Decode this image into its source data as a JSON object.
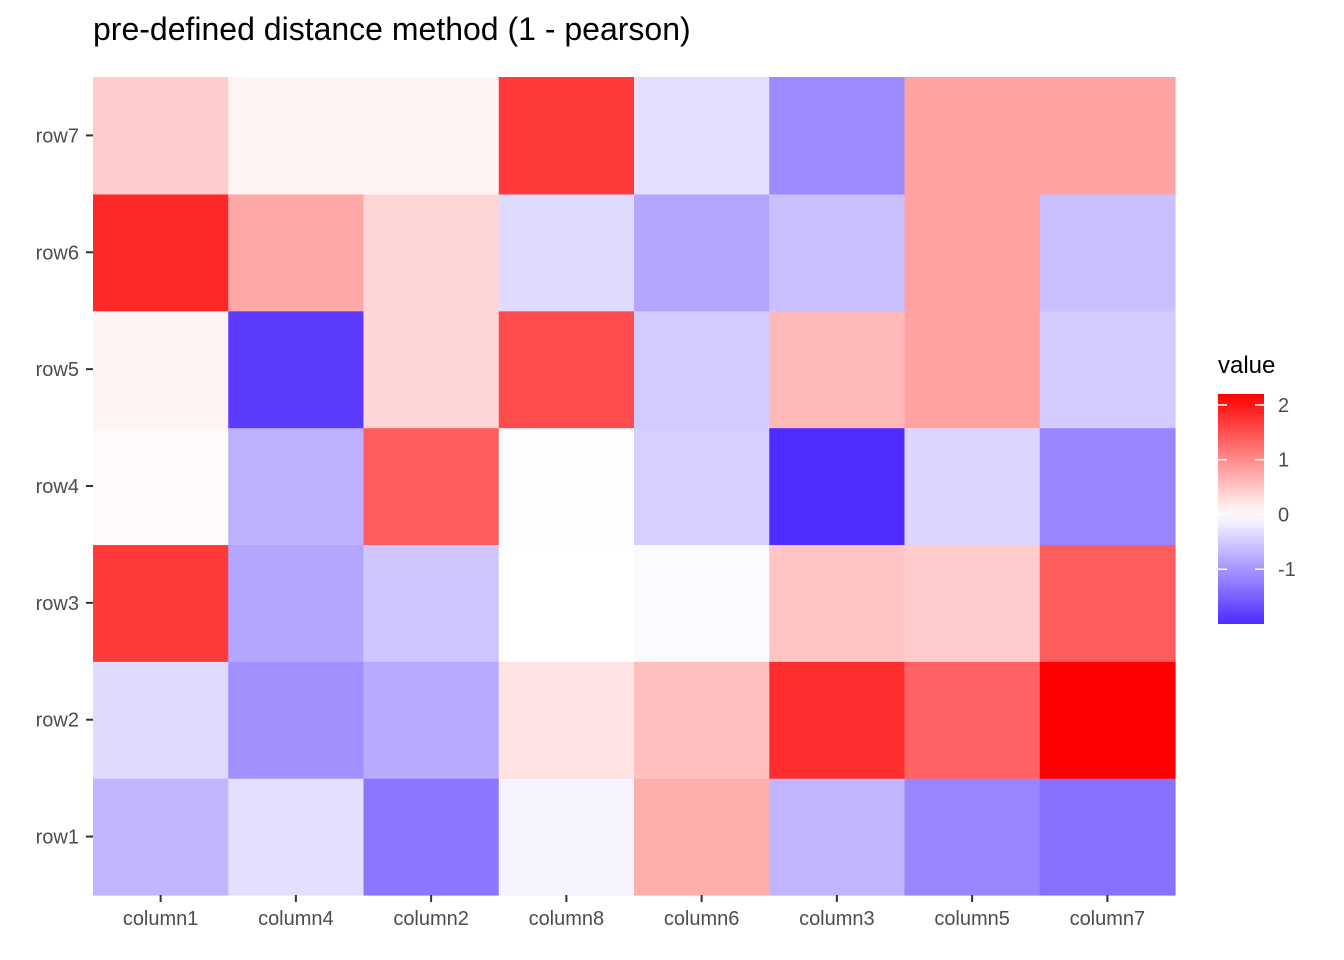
{
  "chart_data": {
    "type": "heatmap",
    "title": "pre-defined distance method (1 - pearson)",
    "xlabel": "",
    "ylabel": "",
    "columns": [
      "column1",
      "column4",
      "column2",
      "column8",
      "column6",
      "column3",
      "column5",
      "column7"
    ],
    "rows": [
      "row1",
      "row2",
      "row3",
      "row4",
      "row5",
      "row6",
      "row7"
    ],
    "values": [
      [
        -0.7,
        -0.3,
        -1.3,
        -0.1,
        0.7,
        -0.7,
        -1.15,
        -1.35
      ],
      [
        -0.35,
        -1.05,
        -0.8,
        0.25,
        0.55,
        1.8,
        1.35,
        2.2
      ],
      [
        1.7,
        -0.85,
        -0.55,
        0.0,
        -0.05,
        0.5,
        0.45,
        1.4
      ],
      [
        0.05,
        -0.75,
        1.4,
        -0.02,
        -0.45,
        -2.0,
        -0.4,
        -1.15
      ],
      [
        0.1,
        -1.85,
        0.35,
        1.55,
        -0.5,
        0.6,
        0.8,
        -0.5
      ],
      [
        1.85,
        0.75,
        0.35,
        -0.35,
        -0.85,
        -0.6,
        0.8,
        -0.6
      ],
      [
        0.45,
        0.1,
        0.1,
        1.7,
        -0.3,
        -1.1,
        0.8,
        0.8
      ]
    ],
    "color_scale": {
      "low": "#4f2bff",
      "mid": "#ffffff",
      "high": "#ff0000",
      "midpoint": 0,
      "limits": [
        -2.0,
        2.2
      ]
    },
    "legend": {
      "title": "value",
      "ticks": [
        2,
        1,
        0,
        -1
      ],
      "tick_labels": [
        "2",
        "1",
        "0",
        "-1"
      ],
      "position": "right"
    },
    "grid": false,
    "panel_background": "#ffffff"
  }
}
